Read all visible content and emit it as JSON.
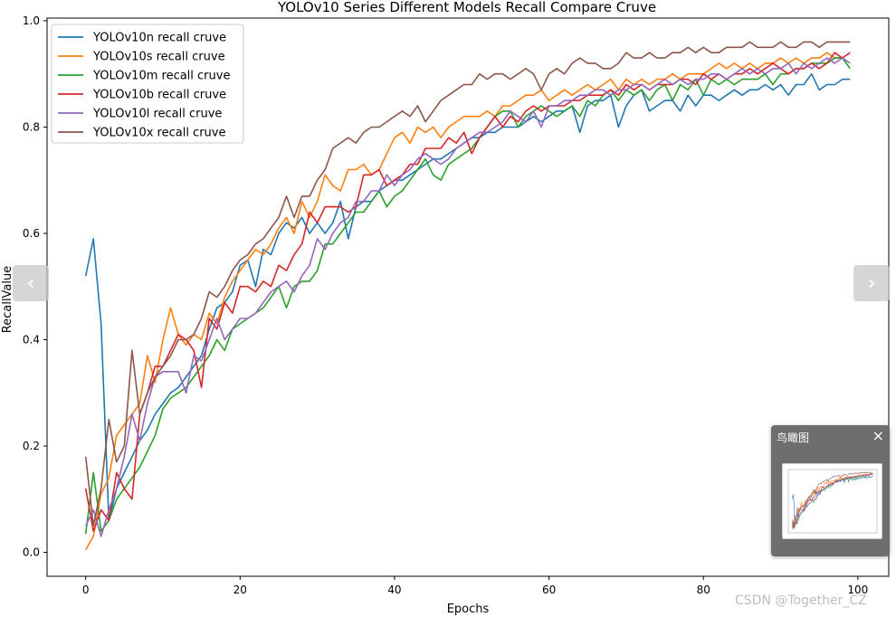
{
  "chart_data": {
    "type": "line",
    "title": "YOLOv10 Series Different Models Recall Compare Cruve",
    "xlabel": "Epochs",
    "ylabel": "RecallValue",
    "xlim": [
      -5,
      104
    ],
    "ylim": [
      -0.045,
      1.005
    ],
    "xticks": [
      0,
      20,
      40,
      60,
      80,
      100
    ],
    "yticks": [
      0.0,
      0.2,
      0.4,
      0.6,
      0.8,
      1.0
    ],
    "grid": false,
    "legend_position": "upper-left",
    "x": [
      0,
      1,
      2,
      3,
      4,
      5,
      6,
      7,
      8,
      9,
      10,
      11,
      12,
      13,
      14,
      15,
      16,
      17,
      18,
      19,
      20,
      21,
      22,
      23,
      24,
      25,
      26,
      27,
      28,
      29,
      30,
      31,
      32,
      33,
      34,
      35,
      36,
      37,
      38,
      39,
      40,
      41,
      42,
      43,
      44,
      45,
      46,
      47,
      48,
      49,
      50,
      51,
      52,
      53,
      54,
      55,
      56,
      57,
      58,
      59,
      60,
      61,
      62,
      63,
      64,
      65,
      66,
      67,
      68,
      69,
      70,
      71,
      72,
      73,
      74,
      75,
      76,
      77,
      78,
      79,
      80,
      81,
      82,
      83,
      84,
      85,
      86,
      87,
      88,
      89,
      90,
      91,
      92,
      93,
      94,
      95,
      96,
      97,
      98,
      99
    ],
    "series": [
      {
        "name": "YOLOv10n recall cruve",
        "color": "#1f77b4",
        "values": [
          0.52,
          0.59,
          0.43,
          0.06,
          0.12,
          0.15,
          0.18,
          0.21,
          0.23,
          0.26,
          0.28,
          0.3,
          0.31,
          0.33,
          0.35,
          0.37,
          0.42,
          0.46,
          0.47,
          0.49,
          0.54,
          0.55,
          0.5,
          0.57,
          0.56,
          0.6,
          0.62,
          0.61,
          0.63,
          0.6,
          0.62,
          0.6,
          0.62,
          0.66,
          0.59,
          0.65,
          0.66,
          0.66,
          0.68,
          0.69,
          0.7,
          0.7,
          0.71,
          0.72,
          0.73,
          0.74,
          0.74,
          0.75,
          0.76,
          0.77,
          0.78,
          0.78,
          0.79,
          0.79,
          0.8,
          0.8,
          0.8,
          0.81,
          0.82,
          0.81,
          0.82,
          0.83,
          0.83,
          0.84,
          0.79,
          0.84,
          0.85,
          0.85,
          0.86,
          0.8,
          0.84,
          0.86,
          0.87,
          0.83,
          0.84,
          0.85,
          0.85,
          0.83,
          0.86,
          0.84,
          0.86,
          0.86,
          0.85,
          0.86,
          0.87,
          0.86,
          0.87,
          0.87,
          0.88,
          0.87,
          0.88,
          0.86,
          0.88,
          0.88,
          0.9,
          0.87,
          0.88,
          0.88,
          0.89,
          0.89
        ]
      },
      {
        "name": "YOLOv10s recall cruve",
        "color": "#ff7f0e",
        "values": [
          0.005,
          0.03,
          0.11,
          0.14,
          0.22,
          0.24,
          0.26,
          0.28,
          0.37,
          0.32,
          0.4,
          0.46,
          0.41,
          0.39,
          0.41,
          0.4,
          0.45,
          0.43,
          0.48,
          0.51,
          0.53,
          0.55,
          0.57,
          0.56,
          0.58,
          0.61,
          0.63,
          0.6,
          0.66,
          0.63,
          0.66,
          0.71,
          0.69,
          0.68,
          0.72,
          0.72,
          0.73,
          0.71,
          0.72,
          0.75,
          0.78,
          0.79,
          0.77,
          0.8,
          0.79,
          0.8,
          0.78,
          0.8,
          0.81,
          0.82,
          0.82,
          0.82,
          0.83,
          0.82,
          0.84,
          0.84,
          0.85,
          0.86,
          0.86,
          0.87,
          0.85,
          0.86,
          0.87,
          0.86,
          0.87,
          0.88,
          0.87,
          0.88,
          0.89,
          0.87,
          0.89,
          0.88,
          0.89,
          0.88,
          0.89,
          0.89,
          0.9,
          0.89,
          0.9,
          0.9,
          0.9,
          0.91,
          0.92,
          0.91,
          0.92,
          0.91,
          0.92,
          0.91,
          0.92,
          0.92,
          0.93,
          0.92,
          0.93,
          0.92,
          0.93,
          0.93,
          0.94,
          0.93,
          0.93,
          0.92
        ]
      },
      {
        "name": "YOLOv10m recall cruve",
        "color": "#2ca02c",
        "values": [
          0.035,
          0.15,
          0.04,
          0.06,
          0.1,
          0.12,
          0.14,
          0.16,
          0.19,
          0.22,
          0.27,
          0.29,
          0.3,
          0.31,
          0.33,
          0.35,
          0.37,
          0.4,
          0.38,
          0.42,
          0.43,
          0.44,
          0.45,
          0.46,
          0.48,
          0.5,
          0.46,
          0.5,
          0.51,
          0.51,
          0.53,
          0.58,
          0.58,
          0.6,
          0.62,
          0.64,
          0.64,
          0.66,
          0.68,
          0.65,
          0.67,
          0.68,
          0.7,
          0.72,
          0.74,
          0.71,
          0.7,
          0.73,
          0.74,
          0.75,
          0.76,
          0.78,
          0.8,
          0.82,
          0.83,
          0.83,
          0.8,
          0.82,
          0.83,
          0.84,
          0.83,
          0.82,
          0.83,
          0.84,
          0.82,
          0.85,
          0.84,
          0.86,
          0.87,
          0.85,
          0.87,
          0.86,
          0.87,
          0.85,
          0.87,
          0.88,
          0.85,
          0.88,
          0.87,
          0.89,
          0.86,
          0.89,
          0.88,
          0.89,
          0.88,
          0.89,
          0.89,
          0.89,
          0.9,
          0.88,
          0.9,
          0.9,
          0.91,
          0.91,
          0.92,
          0.92,
          0.92,
          0.93,
          0.93,
          0.91
        ]
      },
      {
        "name": "YOLOv10b recall cruve",
        "color": "#d62728",
        "values": [
          0.12,
          0.04,
          0.08,
          0.06,
          0.15,
          0.12,
          0.1,
          0.26,
          0.3,
          0.35,
          0.35,
          0.38,
          0.41,
          0.4,
          0.38,
          0.31,
          0.44,
          0.42,
          0.47,
          0.45,
          0.5,
          0.5,
          0.49,
          0.51,
          0.5,
          0.54,
          0.53,
          0.56,
          0.58,
          0.64,
          0.62,
          0.65,
          0.65,
          0.65,
          0.64,
          0.65,
          0.71,
          0.71,
          0.72,
          0.69,
          0.7,
          0.71,
          0.73,
          0.73,
          0.76,
          0.76,
          0.76,
          0.78,
          0.77,
          0.79,
          0.75,
          0.78,
          0.8,
          0.82,
          0.8,
          0.82,
          0.81,
          0.83,
          0.84,
          0.83,
          0.84,
          0.84,
          0.84,
          0.85,
          0.85,
          0.86,
          0.86,
          0.86,
          0.87,
          0.86,
          0.88,
          0.87,
          0.88,
          0.87,
          0.88,
          0.88,
          0.88,
          0.89,
          0.89,
          0.88,
          0.9,
          0.89,
          0.9,
          0.89,
          0.9,
          0.9,
          0.91,
          0.9,
          0.91,
          0.92,
          0.91,
          0.9,
          0.91,
          0.91,
          0.92,
          0.91,
          0.92,
          0.94,
          0.93,
          0.94
        ]
      },
      {
        "name": "YOLOv10l recall cruve",
        "color": "#9467bd",
        "values": [
          0.05,
          0.08,
          0.03,
          0.08,
          0.12,
          0.18,
          0.26,
          0.21,
          0.28,
          0.33,
          0.34,
          0.34,
          0.34,
          0.3,
          0.37,
          0.36,
          0.4,
          0.44,
          0.4,
          0.42,
          0.44,
          0.44,
          0.45,
          0.47,
          0.49,
          0.5,
          0.51,
          0.49,
          0.52,
          0.54,
          0.59,
          0.57,
          0.6,
          0.62,
          0.63,
          0.66,
          0.66,
          0.68,
          0.68,
          0.71,
          0.69,
          0.71,
          0.72,
          0.74,
          0.75,
          0.74,
          0.73,
          0.74,
          0.76,
          0.77,
          0.78,
          0.79,
          0.79,
          0.8,
          0.81,
          0.83,
          0.82,
          0.81,
          0.83,
          0.8,
          0.84,
          0.84,
          0.85,
          0.85,
          0.86,
          0.86,
          0.87,
          0.87,
          0.86,
          0.87,
          0.87,
          0.88,
          0.88,
          0.87,
          0.88,
          0.89,
          0.88,
          0.89,
          0.88,
          0.89,
          0.89,
          0.9,
          0.9,
          0.89,
          0.9,
          0.91,
          0.9,
          0.91,
          0.9,
          0.91,
          0.91,
          0.92,
          0.9,
          0.92,
          0.91,
          0.92,
          0.93,
          0.92,
          0.93,
          0.92
        ]
      },
      {
        "name": "YOLOv10x recall cruve",
        "color": "#8c564b",
        "values": [
          0.18,
          0.05,
          0.12,
          0.25,
          0.17,
          0.2,
          0.38,
          0.26,
          0.3,
          0.33,
          0.35,
          0.37,
          0.4,
          0.4,
          0.41,
          0.44,
          0.49,
          0.48,
          0.5,
          0.53,
          0.55,
          0.56,
          0.58,
          0.59,
          0.61,
          0.63,
          0.67,
          0.63,
          0.67,
          0.67,
          0.7,
          0.72,
          0.76,
          0.77,
          0.78,
          0.77,
          0.79,
          0.8,
          0.8,
          0.81,
          0.82,
          0.83,
          0.82,
          0.84,
          0.81,
          0.83,
          0.85,
          0.86,
          0.87,
          0.88,
          0.88,
          0.9,
          0.89,
          0.9,
          0.9,
          0.89,
          0.9,
          0.91,
          0.9,
          0.87,
          0.9,
          0.91,
          0.9,
          0.92,
          0.93,
          0.92,
          0.92,
          0.91,
          0.91,
          0.92,
          0.94,
          0.93,
          0.93,
          0.94,
          0.93,
          0.93,
          0.94,
          0.94,
          0.95,
          0.94,
          0.95,
          0.94,
          0.94,
          0.95,
          0.95,
          0.95,
          0.96,
          0.95,
          0.95,
          0.95,
          0.96,
          0.95,
          0.95,
          0.96,
          0.96,
          0.95,
          0.96,
          0.96,
          0.96,
          0.96
        ]
      }
    ]
  },
  "overlay": {
    "prev_icon": "chevron-left-icon",
    "prev_glyph": "‹",
    "next_icon": "chevron-right-icon",
    "next_glyph": "›",
    "birdseye_title": "鸟瞰图",
    "close_glyph": "×",
    "watermark": "CSDN @Together_CZ"
  }
}
